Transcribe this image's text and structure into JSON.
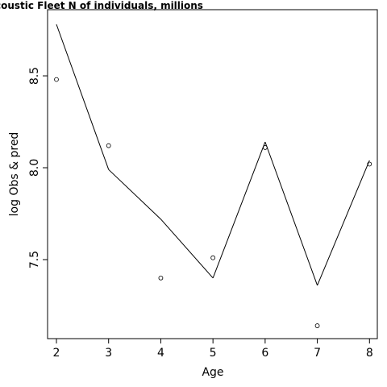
{
  "chart_data": {
    "type": "line",
    "title": "coustic Fleet   N of individuals, millions",
    "xlabel": "Age",
    "ylabel": "log Obs & pred",
    "x": [
      2,
      3,
      4,
      5,
      6,
      7,
      8
    ],
    "xlim": [
      1.83,
      8.15
    ],
    "ylim": [
      7.07,
      8.86
    ],
    "x_ticks": [
      2,
      3,
      4,
      5,
      6,
      7,
      8
    ],
    "y_ticks": [
      7.5,
      8.0,
      8.5
    ],
    "y_tick_labels": [
      "7.5",
      "8.0",
      "8.5"
    ],
    "series": [
      {
        "kind": "line",
        "values": [
          8.78,
          7.99,
          7.72,
          7.4,
          8.14,
          7.36,
          8.04
        ],
        "color": "#000000"
      },
      {
        "kind": "points",
        "values": [
          8.48,
          8.12,
          7.4,
          7.51,
          8.11,
          7.14,
          8.02
        ],
        "color": "#000000"
      }
    ],
    "grid": false,
    "legend": "none"
  }
}
